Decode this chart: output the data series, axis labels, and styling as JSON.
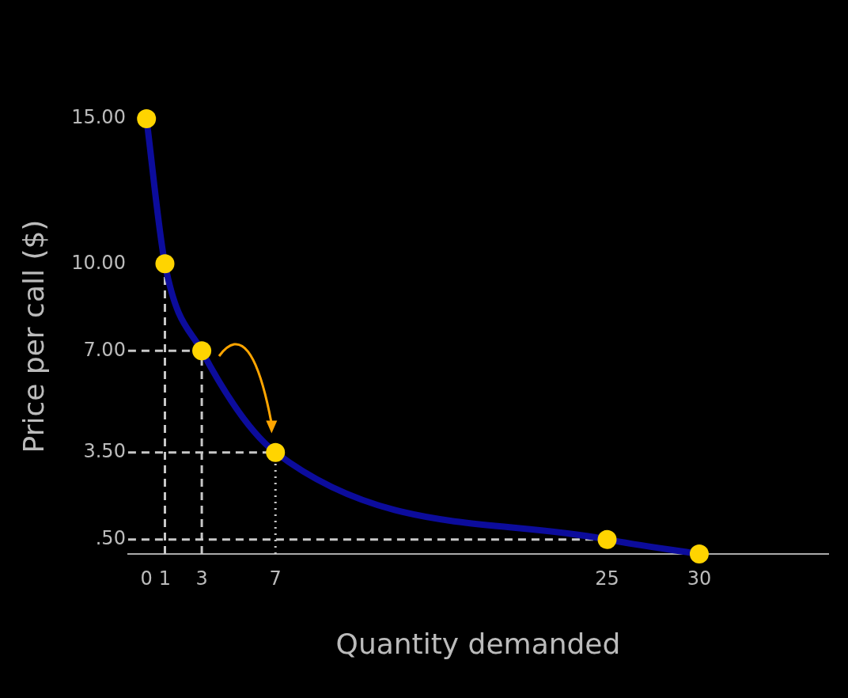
{
  "chart_data": {
    "type": "line",
    "xlabel": "Quantity demanded",
    "ylabel": "Price per call ($)",
    "x": [
      0,
      1,
      3,
      7,
      25,
      30
    ],
    "series": [
      {
        "color": "#0c0c9c",
        "colors": [
          "#ffd400",
          "#ffd400",
          "#ffd400",
          "#ffd400",
          "#ffd400",
          "#ffd400"
        ],
        "values": [
          15,
          10,
          7,
          3.5,
          0.5,
          0
        ]
      }
    ],
    "marker": "circle",
    "xlim": [
      -1,
      37
    ],
    "ylim": [
      0,
      15
    ],
    "xticks": [
      0,
      1,
      3,
      7,
      25,
      30
    ],
    "yticks": [
      {
        "value": 0.5,
        "label": ".50"
      },
      {
        "value": 3.5,
        "label": "3.50"
      },
      {
        "value": 7,
        "label": "7.00"
      },
      {
        "value": 10,
        "label": "10.00"
      },
      {
        "value": 15,
        "label": "15.00"
      }
    ],
    "grid": false,
    "legend": false,
    "ref_lines": [
      {
        "axis": "y",
        "value": 7,
        "line_style": "dashed",
        "color": "#c8c8c8"
      },
      {
        "axis": "y",
        "value": 3.5,
        "line_style": "dashed",
        "color": "#c8c8c8"
      },
      {
        "axis": "y",
        "value": 0.5,
        "line_style": "dashed",
        "color": "#c8c8c8"
      },
      {
        "axis": "x",
        "value": 1,
        "line_style": "dashed",
        "color": "#c8c8c8"
      },
      {
        "axis": "x",
        "value": 3,
        "line_style": "dashed",
        "color": "#c8c8c8"
      },
      {
        "axis": "x",
        "value": 7,
        "line_style": "dotted",
        "color": "#c8c8c8"
      }
    ]
  }
}
